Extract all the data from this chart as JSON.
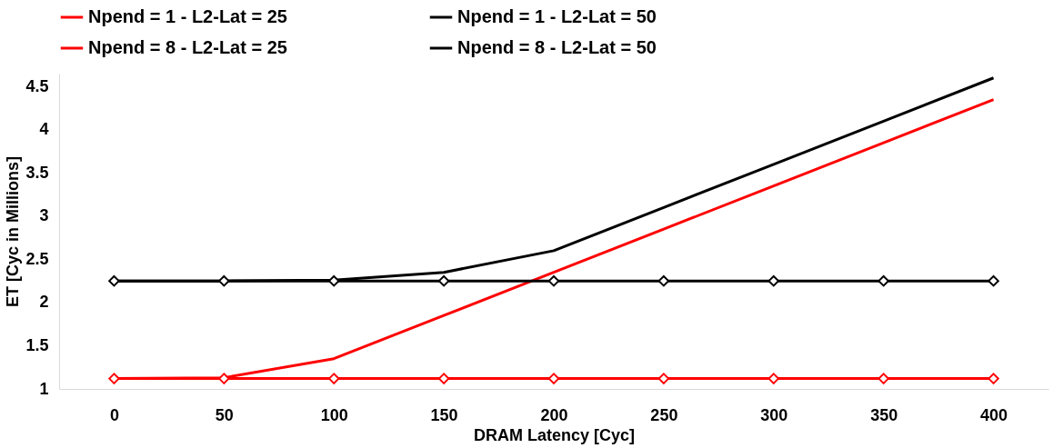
{
  "chart_data": {
    "type": "line",
    "xlabel": "DRAM Latency [Cyc]",
    "ylabel": "ET [Cyc in Millions]",
    "categories": [
      "0",
      "50",
      "100",
      "150",
      "200",
      "250",
      "300",
      "350",
      "400"
    ],
    "series": [
      {
        "name": "Npend = 1 - L2-Lat = 25",
        "color": "#ff0000",
        "marker": "none",
        "values": [
          1.12,
          1.13,
          1.35,
          1.85,
          2.35,
          2.85,
          3.35,
          3.85,
          4.35
        ]
      },
      {
        "name": "Npend = 1 - L2-Lat = 50",
        "color": "#000000",
        "marker": "none",
        "values": [
          2.25,
          2.25,
          2.26,
          2.35,
          2.6,
          3.1,
          3.6,
          4.1,
          4.6
        ]
      },
      {
        "name": "Npend = 8 - L2-Lat = 25",
        "color": "#ff0000",
        "marker": "diamond",
        "values": [
          1.12,
          1.12,
          1.12,
          1.12,
          1.12,
          1.12,
          1.12,
          1.12,
          1.12
        ]
      },
      {
        "name": "Npend = 8 - L2-Lat = 50",
        "color": "#000000",
        "marker": "diamond",
        "values": [
          2.25,
          2.25,
          2.25,
          2.25,
          2.25,
          2.25,
          2.25,
          2.25,
          2.25
        ]
      }
    ],
    "ylim": [
      1,
      4.65
    ],
    "yticks": [
      1,
      1.5,
      2,
      2.5,
      3,
      3.5,
      4,
      4.5
    ],
    "grid": false,
    "legend": "top"
  }
}
